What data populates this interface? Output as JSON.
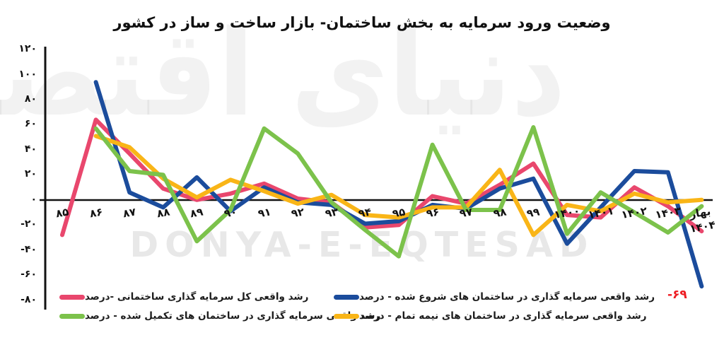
{
  "title": "وضعیت ورود سرمایه به بخش ساختمان- بازار ساخت و ساز در کشور",
  "watermark": {
    "latin": "DONYA-E-EQTESAD",
    "farsi": "دنیای اقتصاد"
  },
  "annotation": {
    "text": "-۶۹",
    "color": "#ee1d23",
    "series": "started"
  },
  "axis_color": "#121212",
  "chart_data": {
    "type": "line",
    "title": "وضعیت ورود سرمایه به بخش ساختمان- بازار ساخت و ساز در کشور",
    "xlabel": "",
    "ylabel": "درصد",
    "ylim": [
      -80,
      120
    ],
    "grid": false,
    "legend_position": "bottom",
    "categories": [
      "85",
      "86",
      "87",
      "88",
      "89",
      "90",
      "91",
      "92",
      "93",
      "94",
      "95",
      "96",
      "97",
      "98",
      "99",
      "1400",
      "1401",
      "1402",
      "1403",
      "بهار 1404"
    ],
    "x_labels": [
      "۸۵",
      "۸۶",
      "۸۷",
      "۸۸",
      "۸۹",
      "۹۰",
      "۹۱",
      "۹۲",
      "۹۳",
      "۹۴",
      "۹۵",
      "۹۶",
      "۹۷",
      "۹۸",
      "۹۹",
      "۱۴۰۰",
      "۱۴۰۱",
      "۱۴۰۲",
      "۱۴۰۳",
      "بهار\n۱۴۰۴"
    ],
    "y_ticks": [
      {
        "value": 120,
        "label": "۱۲۰"
      },
      {
        "value": 100,
        "label": "۱۰۰"
      },
      {
        "value": 80,
        "label": "۸۰"
      },
      {
        "value": 60,
        "label": "۶۰"
      },
      {
        "value": 40,
        "label": "۴۰"
      },
      {
        "value": 20,
        "label": "۲۰"
      },
      {
        "value": 0,
        "label": "۰"
      },
      {
        "value": -20,
        "label": "-۲۰"
      },
      {
        "value": -40,
        "label": "-۴۰"
      },
      {
        "value": -60,
        "label": "-۶۰"
      },
      {
        "value": -80,
        "label": "-۸۰"
      }
    ],
    "series": [
      {
        "id": "total",
        "name": "رشد واقعی کل سرمایه گذاری ساختمانی -درصد",
        "color": "#e9476d",
        "values": [
          -28,
          64,
          37,
          9,
          0,
          5,
          13,
          1,
          -2,
          -22,
          -20,
          3,
          -3,
          12,
          29,
          -12,
          -14,
          10,
          -5,
          -25
        ]
      },
      {
        "id": "started",
        "name": "رشد واقعی سرمایه گذاری در ساختمان های شروع شده - درصد",
        "color": "#1b4c9c",
        "values": [
          null,
          94,
          6,
          -6,
          18,
          -9,
          10,
          -2,
          -4,
          -19,
          -17,
          -4,
          -7,
          9,
          17,
          -35,
          -6,
          23,
          22,
          -69
        ]
      },
      {
        "id": "completed",
        "name": "رشد واقعی سرمایه گذاری در ساختمان های تکمیل شده - درصد",
        "color": "#7cc24b",
        "values": [
          null,
          57,
          23,
          20,
          -33,
          -8,
          57,
          37,
          -2,
          -24,
          -45,
          44,
          -8,
          -8,
          58,
          -27,
          6,
          -10,
          -26,
          -5
        ]
      },
      {
        "id": "half_finished",
        "name": "رشد واقعی سرمایه گذاری در ساختمان های نیمه تمام - درصد",
        "color": "#f9b517",
        "values": [
          null,
          51,
          42,
          17,
          2,
          16,
          7,
          -3,
          4,
          -12,
          -14,
          -6,
          -6,
          24,
          -28,
          -4,
          -9,
          5,
          -2,
          0
        ]
      }
    ]
  }
}
